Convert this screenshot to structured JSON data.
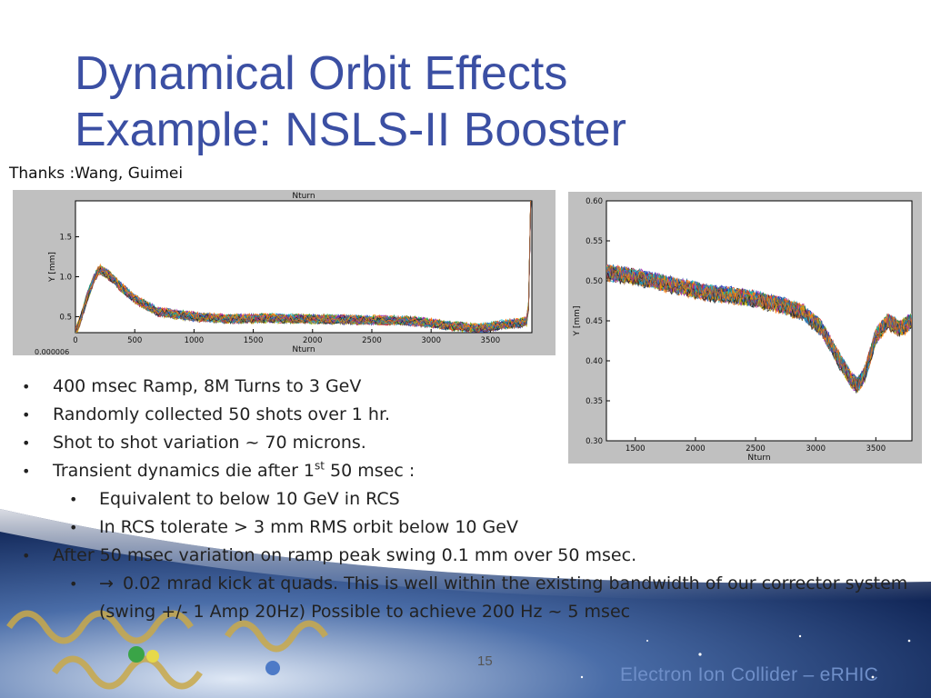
{
  "title": {
    "line1": "Dynamical Orbit Effects",
    "line2": "Example: NSLS-II Booster"
  },
  "thanks": "Thanks :Wang, Guimei",
  "bullets": [
    {
      "text": "400 msec Ramp, 8M Turns to 3 GeV"
    },
    {
      "text": "Randomly collected 50 shots over 1 hr."
    },
    {
      "text": "Shot to shot variation ~ 70 microns."
    },
    {
      "pre": "Transient dynamics die after 1",
      "sup": "st",
      "post": " 50 msec :"
    },
    {
      "text": "Equivalent to below 10 GeV in RCS"
    },
    {
      "text": "In RCS tolerate > 3 mm RMS orbit below 10 GeV"
    },
    {
      "text": "After 50 msec variation on ramp peak swing 0.1 mm over 50 msec."
    },
    {
      "arrow": "→",
      "text": "0.02 mrad kick at quads. This is well within the existing bandwidth of our corrector system (swing +/- 1 Amp 20Hz)  Possible to achieve 200 Hz ~ 5 msec"
    }
  ],
  "bullet_glyph": "•",
  "page_number": "15",
  "footer_brand": "Electron Ion Collider – eRHIC",
  "colors": {
    "title": "#3b4fa3",
    "plot_bg": "#c0c0c0",
    "brand": "#6f8fc9"
  },
  "chart_data": [
    {
      "type": "line",
      "top_label": "Nturn",
      "xlabel": "Nturn",
      "ylabel": "Y [mm]",
      "xlim": [
        0,
        3850
      ],
      "ylim": [
        0.3,
        1.95
      ],
      "xticks": [
        "0",
        "500",
        "1000",
        "1500",
        "2000",
        "2500",
        "3000",
        "3500"
      ],
      "yticks": [
        "0.5",
        "1.0",
        "1.5"
      ],
      "corner_label": "0.000006",
      "series_count": 50,
      "x": [
        0,
        50,
        100,
        150,
        200,
        250,
        300,
        400,
        500,
        700,
        1000,
        1300,
        1600,
        2000,
        2400,
        2800,
        3000,
        3200,
        3400,
        3600,
        3750,
        3820,
        3840
      ],
      "y": [
        0.3,
        0.5,
        0.75,
        0.95,
        1.1,
        1.05,
        1.0,
        0.85,
        0.72,
        0.56,
        0.5,
        0.47,
        0.48,
        0.47,
        0.46,
        0.45,
        0.42,
        0.38,
        0.35,
        0.4,
        0.42,
        0.45,
        1.95
      ]
    },
    {
      "type": "line",
      "xlabel": "Nturn",
      "ylabel": "Y [mm]",
      "xlim": [
        1260,
        3800
      ],
      "ylim": [
        0.3,
        0.6
      ],
      "xticks": [
        "1500",
        "2000",
        "2500",
        "3000",
        "3500"
      ],
      "yticks": [
        "0.30",
        "0.35",
        "0.40",
        "0.45",
        "0.50",
        "0.55",
        "0.60"
      ],
      "series_count": 50,
      "x": [
        1260,
        1500,
        1800,
        2100,
        2400,
        2700,
        2900,
        3050,
        3200,
        3300,
        3350,
        3400,
        3500,
        3600,
        3700,
        3800
      ],
      "y": [
        0.51,
        0.505,
        0.495,
        0.485,
        0.48,
        0.47,
        0.46,
        0.44,
        0.4,
        0.375,
        0.37,
        0.38,
        0.43,
        0.45,
        0.44,
        0.45
      ]
    }
  ]
}
